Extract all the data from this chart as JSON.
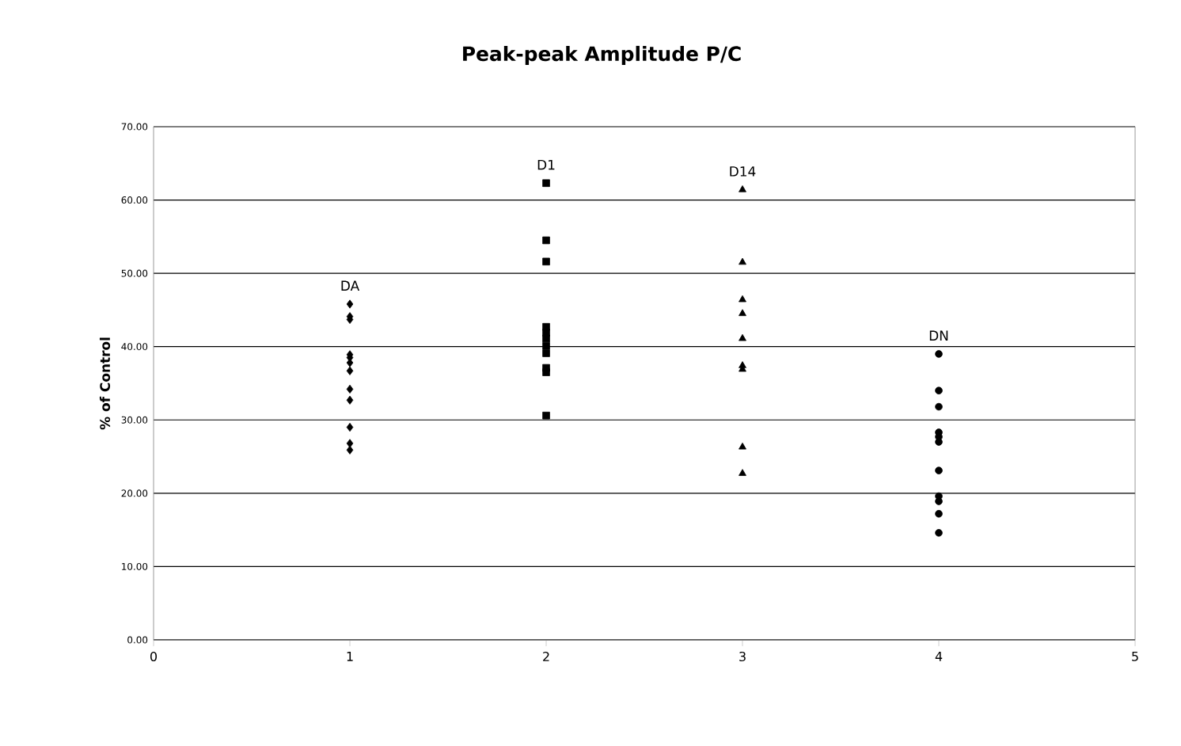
{
  "chart_data": {
    "type": "scatter",
    "title": "Peak-peak Amplitude P/C",
    "ylabel": "% of Control",
    "xlim": [
      0,
      5
    ],
    "xticks": [
      0,
      1,
      2,
      3,
      4,
      5
    ],
    "ylim": [
      0,
      70
    ],
    "yticks": [
      {
        "value": 0,
        "label": "0.00"
      },
      {
        "value": 10,
        "label": "10.00"
      },
      {
        "value": 20,
        "label": "20.00"
      },
      {
        "value": 30,
        "label": "30.00"
      },
      {
        "value": 40,
        "label": "40.00"
      },
      {
        "value": 50,
        "label": "50.00"
      },
      {
        "value": 60,
        "label": "60.00"
      },
      {
        "value": 70,
        "label": "70.00"
      }
    ],
    "grid": "y",
    "series": [
      {
        "name": "DA",
        "color": "#000000",
        "marker": "diamond",
        "x": [
          1,
          1,
          1,
          1,
          1,
          1,
          1,
          1,
          1,
          1,
          1,
          1
        ],
        "values": [
          45.8,
          44.1,
          43.7,
          38.9,
          38.5,
          37.8,
          36.7,
          34.2,
          32.7,
          29.0,
          26.8,
          25.9
        ]
      },
      {
        "name": "D1",
        "color": "#000000",
        "marker": "square",
        "x": [
          2,
          2,
          2,
          2,
          2,
          2,
          2,
          2,
          2,
          2,
          2
        ],
        "values": [
          62.3,
          54.5,
          51.6,
          42.7,
          41.9,
          41.1,
          40.1,
          39.1,
          37.1,
          36.5,
          30.6
        ]
      },
      {
        "name": "D14",
        "color": "#000000",
        "marker": "triangle",
        "x": [
          3,
          3,
          3,
          3,
          3,
          3,
          3,
          3,
          3
        ],
        "values": [
          61.4,
          51.5,
          46.4,
          44.5,
          41.1,
          37.4,
          36.9,
          26.3,
          22.7
        ]
      },
      {
        "name": "DN",
        "color": "#000000",
        "marker": "circle",
        "x": [
          4,
          4,
          4,
          4,
          4,
          4,
          4,
          4,
          4,
          4,
          4
        ],
        "values": [
          39.0,
          34.0,
          31.8,
          28.3,
          27.7,
          27.0,
          23.1,
          19.6,
          18.9,
          17.2,
          14.6
        ]
      }
    ]
  }
}
